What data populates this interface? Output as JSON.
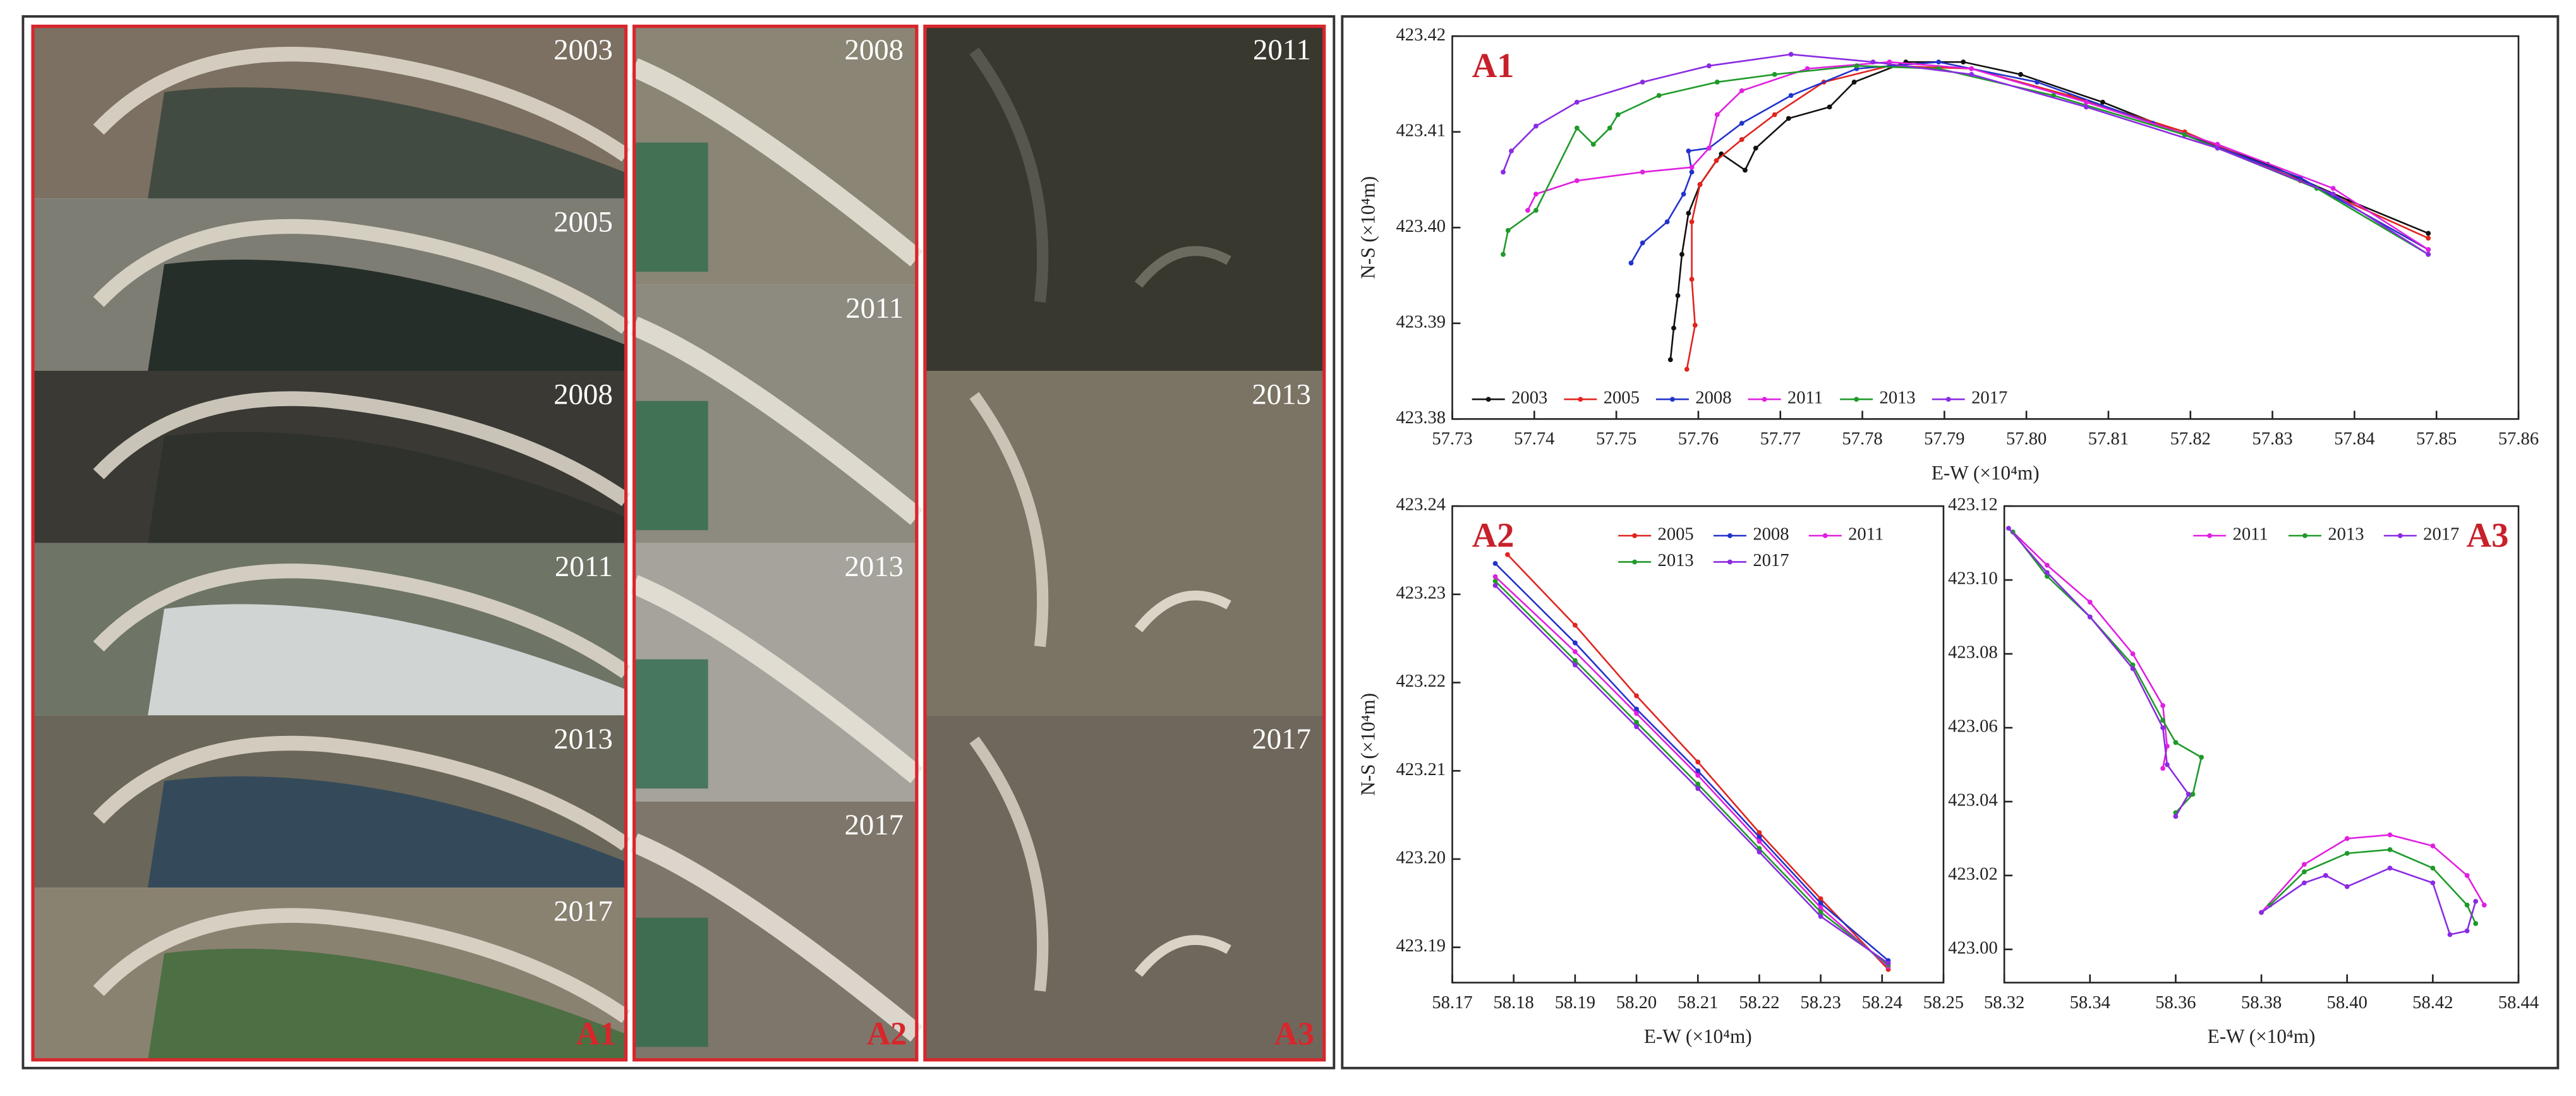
{
  "image_panels": [
    {
      "label": "A1",
      "years": [
        "2003",
        "2005",
        "2008",
        "2011",
        "2013",
        "2017"
      ]
    },
    {
      "label": "A2",
      "years": [
        "2008",
        "2011",
        "2013",
        "2017"
      ]
    },
    {
      "label": "A3",
      "years": [
        "2011",
        "2013",
        "2017"
      ]
    }
  ],
  "chart_data": [
    {
      "type": "line",
      "title": "A1",
      "x_label": "E-W (×10⁴m)",
      "y_label": "N-S (×10⁴m)",
      "legend": "lower left",
      "grid": false,
      "xlim": [
        57.73,
        57.86
      ],
      "xticks": [
        57.73,
        57.74,
        57.75,
        57.76,
        57.77,
        57.78,
        57.79,
        {
          "value": 57.8,
          "label": "57.80"
        },
        57.81,
        57.82,
        57.83,
        57.84,
        57.85,
        57.86
      ],
      "ylim": [
        423.38,
        423.42
      ],
      "yticks": [
        423.38,
        423.39,
        {
          "value": 423.4,
          "label": "423.40"
        },
        423.41,
        423.42
      ],
      "series": [
        {
          "name": "2003",
          "color": "#111111",
          "x": [
            57.7566,
            57.757,
            57.7575,
            57.758,
            57.7588,
            57.7602,
            57.7628,
            57.7657,
            57.767,
            57.771,
            57.776,
            57.779,
            57.7853,
            57.7923,
            57.7993,
            57.8093,
            57.8193,
            57.8294,
            57.8394,
            57.849
          ],
          "values": [
            423.3862,
            423.3895,
            423.3929,
            423.3972,
            423.4015,
            423.4045,
            423.4077,
            423.406,
            423.4083,
            423.4114,
            423.4126,
            423.4152,
            423.4173,
            423.4173,
            423.416,
            423.4131,
            423.4097,
            423.4066,
            423.4028,
            423.3994
          ]
        },
        {
          "name": "2005",
          "color": "#e0241f",
          "x": [
            57.7586,
            57.7596,
            57.7592,
            57.7592,
            57.7602,
            57.7622,
            57.7653,
            57.7693,
            57.7753,
            57.7833,
            57.7933,
            57.8052,
            57.8193,
            57.8334,
            57.849
          ],
          "values": [
            423.3852,
            423.3898,
            423.3946,
            423.4006,
            423.4045,
            423.407,
            423.4092,
            423.4118,
            423.4152,
            423.4169,
            423.4166,
            423.4138,
            423.41,
            423.4049,
            423.3989
          ]
        },
        {
          "name": "2008",
          "color": "#2233cc",
          "x": [
            57.7518,
            57.7532,
            57.7562,
            57.7582,
            57.7592,
            57.7588,
            57.7613,
            57.7653,
            57.7713,
            57.7793,
            57.7893,
            57.8013,
            57.8154,
            57.8334,
            57.849
          ],
          "values": [
            423.3963,
            423.3984,
            423.4006,
            423.4035,
            423.4058,
            423.408,
            423.4083,
            423.4109,
            423.4138,
            423.4166,
            423.4173,
            423.4152,
            423.4109,
            423.4052,
            423.3977
          ]
        },
        {
          "name": "2011",
          "color": "#e020e0",
          "x": [
            57.7392,
            57.7402,
            57.7452,
            57.7532,
            57.7592,
            57.7613,
            57.7623,
            57.7653,
            57.7733,
            57.7833,
            57.7933,
            57.8073,
            57.8233,
            57.8374,
            57.849
          ],
          "values": [
            423.4018,
            423.4035,
            423.4049,
            423.4058,
            423.4063,
            423.4083,
            423.4118,
            423.4143,
            423.4166,
            423.4173,
            423.4166,
            423.4131,
            423.4087,
            423.4041,
            423.3977
          ]
        },
        {
          "name": "2013",
          "color": "#1f9a2a",
          "x": [
            57.7362,
            57.7368,
            57.7402,
            57.7452,
            57.7472,
            57.7492,
            57.7502,
            57.7552,
            57.7623,
            57.7693,
            57.7793,
            57.7893,
            57.8033,
            57.8193,
            57.8354,
            57.849
          ],
          "values": [
            423.3972,
            423.3997,
            423.4018,
            423.4104,
            423.4087,
            423.4104,
            423.4118,
            423.4138,
            423.4152,
            423.416,
            423.4169,
            423.4166,
            423.4138,
            423.4097,
            423.4041,
            423.3972
          ]
        },
        {
          "name": "2017",
          "color": "#8a2be2",
          "x": [
            57.7362,
            57.7372,
            57.7402,
            57.7452,
            57.7532,
            57.7613,
            57.7713,
            57.7813,
            57.7933,
            57.8073,
            57.8233,
            57.8374,
            57.849
          ],
          "values": [
            423.4058,
            423.408,
            423.4106,
            423.4131,
            423.4152,
            423.4169,
            423.4181,
            423.4173,
            423.416,
            423.4126,
            423.4083,
            423.4035,
            423.3972
          ]
        }
      ]
    },
    {
      "type": "line",
      "title": "A2",
      "x_label": "E-W (×10⁴m)",
      "y_label": "N-S (×10⁴m)",
      "legend": "upper right",
      "grid": false,
      "xlim": [
        58.17,
        58.25
      ],
      "xticks": [
        58.17,
        58.18,
        58.19,
        {
          "value": 58.2,
          "label": "58.20"
        },
        58.21,
        58.22,
        58.23,
        58.24,
        58.25
      ],
      "ylim": [
        423.186,
        423.24
      ],
      "yticks": [
        423.19,
        {
          "value": 423.2,
          "label": "423.20"
        },
        423.21,
        423.22,
        423.23,
        423.24
      ],
      "series": [
        {
          "name": "2005",
          "color": "#e0241f",
          "x": [
            58.179,
            58.19,
            58.2,
            58.21,
            58.22,
            58.23,
            58.241
          ],
          "values": [
            423.2345,
            423.2265,
            423.2185,
            423.211,
            423.203,
            423.1955,
            423.1875
          ]
        },
        {
          "name": "2008",
          "color": "#2233cc",
          "x": [
            58.177,
            58.19,
            58.2,
            58.21,
            58.22,
            58.23,
            58.241
          ],
          "values": [
            423.2335,
            423.2245,
            423.217,
            423.21,
            423.2025,
            423.195,
            423.1885
          ]
        },
        {
          "name": "2011",
          "color": "#e020e0",
          "x": [
            58.177,
            58.19,
            58.2,
            58.21,
            58.22,
            58.23,
            58.241
          ],
          "values": [
            423.232,
            423.2235,
            423.2165,
            423.2095,
            423.202,
            423.1945,
            423.1878
          ]
        },
        {
          "name": "2013",
          "color": "#1f9a2a",
          "x": [
            58.177,
            58.19,
            58.2,
            58.21,
            58.22,
            58.23,
            58.241
          ],
          "values": [
            423.2315,
            423.2225,
            423.2155,
            423.2085,
            423.2012,
            423.194,
            423.188
          ]
        },
        {
          "name": "2017",
          "color": "#8a2be2",
          "x": [
            58.177,
            58.19,
            58.2,
            58.21,
            58.22,
            58.23,
            58.241
          ],
          "values": [
            423.231,
            423.222,
            423.215,
            423.208,
            423.2008,
            423.1935,
            423.1882
          ]
        }
      ]
    },
    {
      "type": "line",
      "title": "A3",
      "x_label": "E-W (×10⁴m)",
      "legend": "upper right",
      "grid": false,
      "xlim": [
        58.32,
        58.44
      ],
      "xticks": [
        58.32,
        58.34,
        58.36,
        58.38,
        {
          "value": 58.4,
          "label": "58.40"
        },
        58.42,
        58.44
      ],
      "ylim": [
        422.991,
        423.12
      ],
      "yticks": [
        {
          "value": 423,
          "label": "423.00"
        },
        423.02,
        423.04,
        423.06,
        423.08,
        {
          "value": 423.1,
          "label": "423.10"
        },
        423.12
      ],
      "series": [
        {
          "name": "2011",
          "color": "#e020e0",
          "x": [
            58.322,
            58.33,
            58.34,
            58.35,
            58.357,
            58.358,
            58.357,
            null,
            58.38,
            58.39,
            58.4,
            58.41,
            58.42,
            58.428,
            58.432
          ],
          "values": [
            423.113,
            423.104,
            423.094,
            423.08,
            423.066,
            423.055,
            423.049,
            null,
            423.01,
            423.023,
            423.03,
            423.031,
            423.028,
            423.02,
            423.012
          ]
        },
        {
          "name": "2013",
          "color": "#1f9a2a",
          "x": [
            58.322,
            58.33,
            58.34,
            58.35,
            58.357,
            58.36,
            58.366,
            58.364,
            58.36,
            null,
            58.382,
            58.39,
            58.4,
            58.41,
            58.42,
            58.428,
            58.43
          ],
          "values": [
            423.113,
            423.101,
            423.09,
            423.077,
            423.062,
            423.056,
            423.052,
            423.042,
            423.037,
            null,
            423.012,
            423.021,
            423.026,
            423.027,
            423.022,
            423.012,
            423.007
          ]
        },
        {
          "name": "2017",
          "color": "#8a2be2",
          "x": [
            58.321,
            58.33,
            58.34,
            58.35,
            58.357,
            58.358,
            58.363,
            58.36,
            null,
            58.38,
            58.39,
            58.395,
            58.4,
            58.41,
            58.42,
            58.424,
            58.428,
            58.43
          ],
          "values": [
            423.114,
            423.102,
            423.09,
            423.076,
            423.06,
            423.05,
            423.042,
            423.036,
            null,
            423.01,
            423.018,
            423.02,
            423.017,
            423.022,
            423.018,
            423.004,
            423.005,
            423.013
          ]
        }
      ]
    }
  ]
}
